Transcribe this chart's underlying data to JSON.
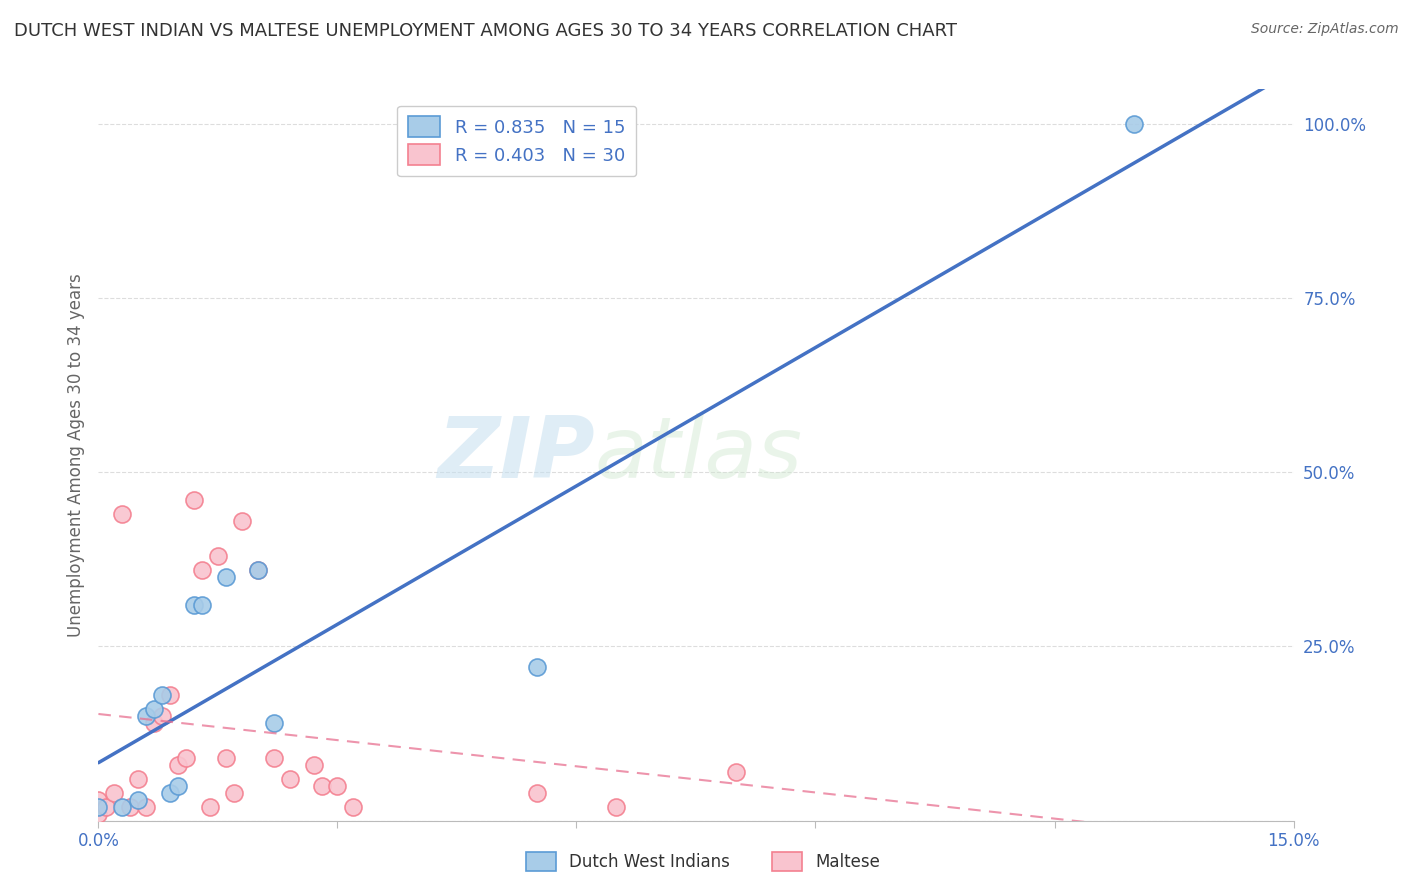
{
  "title": "DUTCH WEST INDIAN VS MALTESE UNEMPLOYMENT AMONG AGES 30 TO 34 YEARS CORRELATION CHART",
  "source": "Source: ZipAtlas.com",
  "ylabel": "Unemployment Among Ages 30 to 34 years",
  "xlim": [
    0.0,
    0.15
  ],
  "ylim": [
    0.0,
    1.05
  ],
  "xticks": [
    0.0,
    0.03,
    0.06,
    0.09,
    0.12,
    0.15
  ],
  "xtick_labels": [
    "0.0%",
    "",
    "",
    "",
    "",
    "15.0%"
  ],
  "yticks": [
    0.0,
    0.25,
    0.5,
    0.75,
    1.0
  ],
  "ytick_labels": [
    "",
    "25.0%",
    "50.0%",
    "75.0%",
    "100.0%"
  ],
  "watermark_zip": "ZIP",
  "watermark_atlas": "atlas",
  "blue_fill": "#a8cce8",
  "pink_fill": "#f9c4cf",
  "blue_edge": "#5b9bd5",
  "pink_edge": "#f48090",
  "blue_line": "#4472c4",
  "pink_line": "#e87090",
  "legend_label_blue": "R = 0.835   N = 15",
  "legend_label_pink": "R = 0.403   N = 30",
  "bottom_label_blue": "Dutch West Indians",
  "bottom_label_pink": "Maltese",
  "dutch_x": [
    0.0,
    0.003,
    0.005,
    0.006,
    0.007,
    0.008,
    0.009,
    0.01,
    0.012,
    0.013,
    0.016,
    0.02,
    0.022,
    0.055,
    0.13
  ],
  "dutch_y": [
    0.02,
    0.02,
    0.03,
    0.15,
    0.16,
    0.18,
    0.04,
    0.05,
    0.31,
    0.31,
    0.35,
    0.36,
    0.14,
    0.22,
    1.0
  ],
  "maltese_x": [
    0.0,
    0.0,
    0.001,
    0.002,
    0.003,
    0.004,
    0.005,
    0.006,
    0.007,
    0.008,
    0.009,
    0.01,
    0.011,
    0.012,
    0.013,
    0.014,
    0.015,
    0.016,
    0.017,
    0.018,
    0.02,
    0.022,
    0.024,
    0.027,
    0.028,
    0.03,
    0.032,
    0.055,
    0.065,
    0.08
  ],
  "maltese_y": [
    0.01,
    0.03,
    0.02,
    0.04,
    0.44,
    0.02,
    0.06,
    0.02,
    0.14,
    0.15,
    0.18,
    0.08,
    0.09,
    0.46,
    0.36,
    0.02,
    0.38,
    0.09,
    0.04,
    0.43,
    0.36,
    0.09,
    0.06,
    0.08,
    0.05,
    0.05,
    0.02,
    0.04,
    0.02,
    0.07
  ],
  "background_color": "#ffffff",
  "grid_color": "#dddddd",
  "title_color": "#333333",
  "axis_label_color": "#666666",
  "tick_color": "#4472c4",
  "marker_size": 150
}
